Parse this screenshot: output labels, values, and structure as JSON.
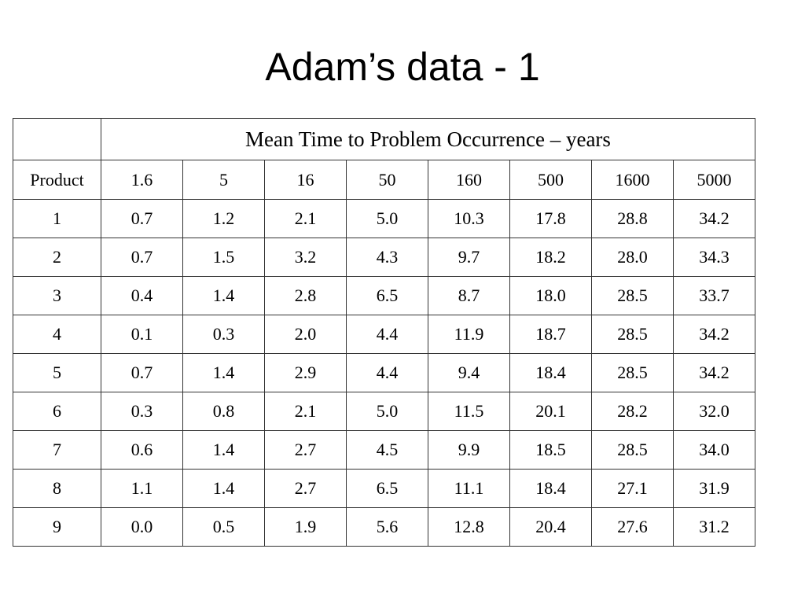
{
  "title": "Adam’s data - 1",
  "table": {
    "group_header": "Mean Time to Problem Occurrence  – years",
    "columns": [
      "Product",
      "1.6",
      "5",
      "16",
      "50",
      "160",
      "500",
      "1600",
      "5000"
    ],
    "rows": [
      [
        "1",
        "0.7",
        "1.2",
        "2.1",
        "5.0",
        "10.3",
        "17.8",
        "28.8",
        "34.2"
      ],
      [
        "2",
        "0.7",
        "1.5",
        "3.2",
        "4.3",
        "9.7",
        "18.2",
        "28.0",
        "34.3"
      ],
      [
        "3",
        "0.4",
        "1.4",
        "2.8",
        "6.5",
        "8.7",
        "18.0",
        "28.5",
        "33.7"
      ],
      [
        "4",
        "0.1",
        "0.3",
        "2.0",
        "4.4",
        "11.9",
        "18.7",
        "28.5",
        "34.2"
      ],
      [
        "5",
        "0.7",
        "1.4",
        "2.9",
        "4.4",
        "9.4",
        "18.4",
        "28.5",
        "34.2"
      ],
      [
        "6",
        "0.3",
        "0.8",
        "2.1",
        "5.0",
        "11.5",
        "20.1",
        "28.2",
        "32.0"
      ],
      [
        "7",
        "0.6",
        "1.4",
        "2.7",
        "4.5",
        "9.9",
        "18.5",
        "28.5",
        "34.0"
      ],
      [
        "8",
        "1.1",
        "1.4",
        "2.7",
        "6.5",
        "11.1",
        "18.4",
        "27.1",
        "31.9"
      ],
      [
        "9",
        "0.0",
        "0.5",
        "1.9",
        "5.6",
        "12.8",
        "20.4",
        "27.6",
        "31.2"
      ]
    ]
  }
}
